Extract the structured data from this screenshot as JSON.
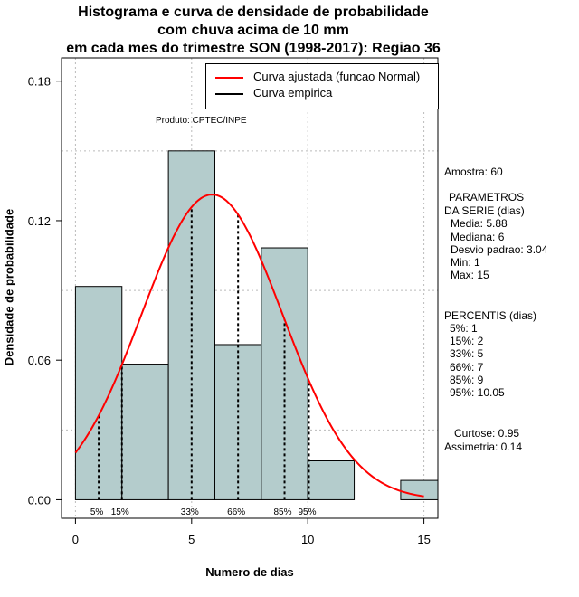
{
  "title_lines": [
    "Histograma e curva de densidade de probabilidade",
    "com chuva acima de 10 mm",
    "em cada mes do trimestre SON (1998-2017): Regiao 36"
  ],
  "product_label": "Produto: CPTEC/INPE",
  "legend": [
    {
      "label": "Curva ajustada (funcao Normal)",
      "color": "#ff0000"
    },
    {
      "label": "Curva empirica",
      "color": "#000000"
    }
  ],
  "colors": {
    "bar_fill": "#b4cccc",
    "fit_curve": "#ff0000",
    "grid": "#bbbbbb"
  },
  "side_panel": {
    "sample": "Amostra: 60",
    "params_title_1": "PARAMETROS",
    "params_title_2": "DA SERIE (dias)",
    "media": "Media: 5.88",
    "mediana": "Mediana: 6",
    "desvio": "Desvio padrao: 3.04",
    "min": "Min: 1",
    "max": "Max: 15",
    "percentis_title": "PERCENTIS (dias)",
    "p5": "5%: 1",
    "p15": "15%: 2",
    "p33": "33%: 5",
    "p66": "66%: 7",
    "p85": "85%: 9",
    "p95": "95%: 10.05",
    "curtose": "Curtose: 0.95",
    "assimetria": "Assimetria: 0.14"
  },
  "chart_data": {
    "type": "bar",
    "xlabel": "Numero de dias",
    "ylabel": "Densidade de probabilidade",
    "xlim": [
      -0.6,
      15.6
    ],
    "ylim": [
      -0.008,
      0.19
    ],
    "x_ticks": [
      0,
      5,
      10,
      15
    ],
    "y_ticks": [
      0.0,
      0.06,
      0.12,
      0.18
    ],
    "y_tick_labels": [
      "0.00",
      "0.06",
      "0.12",
      "0.18"
    ],
    "bins": [
      {
        "start": 0,
        "end": 2,
        "density": 0.0917
      },
      {
        "start": 2,
        "end": 4,
        "density": 0.0583
      },
      {
        "start": 4,
        "end": 6,
        "density": 0.15
      },
      {
        "start": 6,
        "end": 8,
        "density": 0.0667
      },
      {
        "start": 8,
        "end": 10,
        "density": 0.1083
      },
      {
        "start": 10,
        "end": 12,
        "density": 0.0167
      },
      {
        "start": 12,
        "end": 14,
        "density": 0
      },
      {
        "start": 14,
        "end": 16,
        "density": 0.0083
      }
    ],
    "normal_fit": {
      "mean": 5.88,
      "sd": 3.04,
      "x_range": [
        0,
        15
      ]
    },
    "percentile_lines": [
      {
        "label": "5%",
        "x": 1
      },
      {
        "label": "15%",
        "x": 2
      },
      {
        "label": "33%",
        "x": 5
      },
      {
        "label": "66%",
        "x": 7
      },
      {
        "label": "85%",
        "x": 9
      },
      {
        "label": "95%",
        "x": 10.05
      }
    ]
  }
}
